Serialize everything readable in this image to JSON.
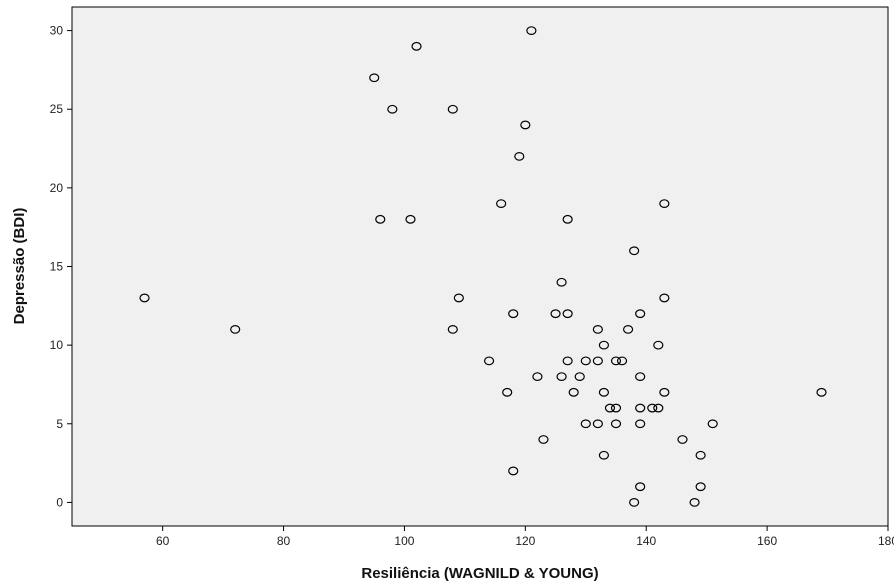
{
  "chart_data": {
    "type": "scatter",
    "xlabel": "Resiliência (WAGNILD & YOUNG)",
    "ylabel": "Depressão (BDI)",
    "xlim": [
      45,
      180
    ],
    "ylim": [
      -1.5,
      31.5
    ],
    "xticks": [
      60,
      80,
      100,
      120,
      140,
      160,
      180
    ],
    "yticks": [
      0,
      5,
      10,
      15,
      20,
      25,
      30
    ],
    "grid": false,
    "plot_background": "#f0f0f0",
    "marker": "open-circle",
    "points": [
      {
        "x": 57,
        "y": 13
      },
      {
        "x": 72,
        "y": 11
      },
      {
        "x": 95,
        "y": 27
      },
      {
        "x": 96,
        "y": 18
      },
      {
        "x": 98,
        "y": 25
      },
      {
        "x": 101,
        "y": 18
      },
      {
        "x": 102,
        "y": 29
      },
      {
        "x": 108,
        "y": 25
      },
      {
        "x": 108,
        "y": 11
      },
      {
        "x": 109,
        "y": 13
      },
      {
        "x": 114,
        "y": 9
      },
      {
        "x": 116,
        "y": 19
      },
      {
        "x": 117,
        "y": 7
      },
      {
        "x": 118,
        "y": 12
      },
      {
        "x": 118,
        "y": 2
      },
      {
        "x": 119,
        "y": 22
      },
      {
        "x": 120,
        "y": 24
      },
      {
        "x": 121,
        "y": 30
      },
      {
        "x": 122,
        "y": 8
      },
      {
        "x": 123,
        "y": 4
      },
      {
        "x": 125,
        "y": 12
      },
      {
        "x": 126,
        "y": 14
      },
      {
        "x": 126,
        "y": 8
      },
      {
        "x": 127,
        "y": 18
      },
      {
        "x": 127,
        "y": 12
      },
      {
        "x": 127,
        "y": 9
      },
      {
        "x": 128,
        "y": 7
      },
      {
        "x": 129,
        "y": 8
      },
      {
        "x": 130,
        "y": 9
      },
      {
        "x": 130,
        "y": 5
      },
      {
        "x": 132,
        "y": 11
      },
      {
        "x": 132,
        "y": 9
      },
      {
        "x": 132,
        "y": 5
      },
      {
        "x": 133,
        "y": 10
      },
      {
        "x": 133,
        "y": 7
      },
      {
        "x": 133,
        "y": 3
      },
      {
        "x": 134,
        "y": 6
      },
      {
        "x": 135,
        "y": 9
      },
      {
        "x": 135,
        "y": 6
      },
      {
        "x": 135,
        "y": 5
      },
      {
        "x": 136,
        "y": 9
      },
      {
        "x": 137,
        "y": 11
      },
      {
        "x": 138,
        "y": 16
      },
      {
        "x": 138,
        "y": 0
      },
      {
        "x": 139,
        "y": 12
      },
      {
        "x": 139,
        "y": 8
      },
      {
        "x": 139,
        "y": 6
      },
      {
        "x": 139,
        "y": 5
      },
      {
        "x": 139,
        "y": 1
      },
      {
        "x": 141,
        "y": 6
      },
      {
        "x": 142,
        "y": 10
      },
      {
        "x": 142,
        "y": 6
      },
      {
        "x": 143,
        "y": 19
      },
      {
        "x": 143,
        "y": 13
      },
      {
        "x": 143,
        "y": 7
      },
      {
        "x": 146,
        "y": 4
      },
      {
        "x": 148,
        "y": 0
      },
      {
        "x": 149,
        "y": 3
      },
      {
        "x": 149,
        "y": 1
      },
      {
        "x": 151,
        "y": 5
      },
      {
        "x": 169,
        "y": 7
      }
    ]
  }
}
